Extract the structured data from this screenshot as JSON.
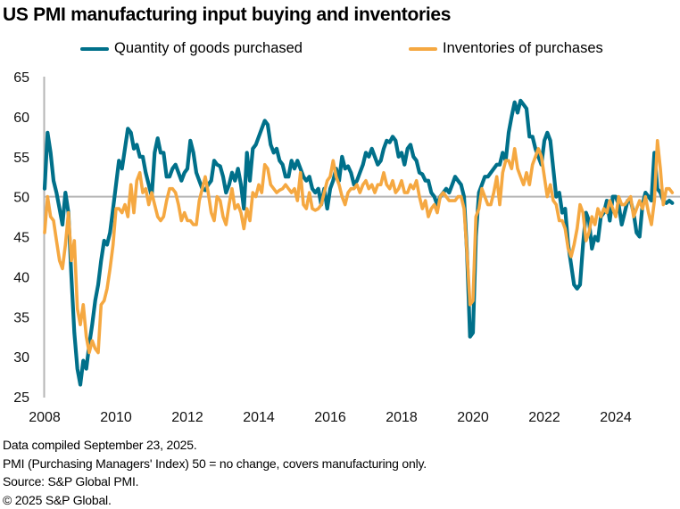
{
  "chart_data": {
    "type": "line",
    "title": "US PMI manufacturing input buying and inventories",
    "xlabel": "",
    "ylabel": "",
    "ylim": [
      25,
      65
    ],
    "xlim": [
      2008,
      2025.75
    ],
    "yticks": [
      25,
      30,
      35,
      40,
      45,
      50,
      55,
      60,
      65
    ],
    "xticks": [
      "2008",
      "2010",
      "2012",
      "2014",
      "2016",
      "2018",
      "2020",
      "2022",
      "2024"
    ],
    "reference_line": 50,
    "legend_position": "top-center",
    "x_start": "2008-01",
    "frequency": "monthly",
    "series": [
      {
        "name": "Quantity of goods purchased",
        "color": "#00708A",
        "values": [
          51.0,
          58.0,
          55.5,
          52.0,
          50.5,
          48.5,
          46.5,
          50.5,
          48.0,
          40.0,
          33.0,
          28.5,
          26.5,
          29.5,
          28.5,
          31.5,
          34.0,
          37.0,
          39.0,
          42.0,
          44.5,
          44.0,
          45.5,
          48.5,
          51.5,
          54.5,
          53.5,
          56.0,
          58.5,
          58.0,
          56.0,
          56.5,
          55.0,
          55.0,
          53.0,
          51.5,
          50.0,
          55.5,
          57.3,
          55.5,
          55.5,
          52.5,
          52.5,
          53.5,
          54.0,
          53.0,
          52.0,
          53.0,
          53.5,
          57.0,
          55.5,
          53.0,
          52.0,
          51.0,
          50.8,
          51.5,
          52.0,
          54.5,
          54.0,
          53.8,
          52.5,
          50.5,
          51.5,
          53.0,
          52.0,
          53.5,
          51.5,
          48.5,
          55.5,
          52.0,
          56.0,
          56.5,
          57.5,
          58.5,
          59.5,
          59.0,
          56.5,
          55.5,
          56.0,
          54.5,
          54.0,
          52.5,
          52.5,
          54.5,
          53.5,
          54.5,
          53.5,
          52.5,
          52.0,
          52.5,
          51.0,
          50.5,
          51.0,
          49.0,
          51.0,
          48.5,
          51.0,
          52.0,
          53.5,
          52.0,
          55.0,
          53.5,
          53.8,
          53.0,
          51.5,
          52.0,
          53.0,
          54.0,
          55.5,
          55.0,
          56.0,
          55.0,
          54.0,
          54.5,
          56.0,
          57.0,
          56.8,
          57.5,
          57.0,
          55.0,
          55.5,
          54.0,
          56.0,
          56.5,
          55.0,
          54.5,
          53.0,
          52.8,
          52.0,
          52.0,
          50.5,
          50.0,
          49.0,
          50.0,
          50.5,
          51.0,
          50.5,
          51.5,
          52.5,
          52.0,
          51.5,
          50.0,
          43.0,
          32.5,
          33.0,
          45.0,
          50.5,
          51.5,
          52.5,
          52.5,
          53.0,
          53.5,
          54.0,
          54.0,
          55.5,
          54.5,
          58.0,
          60.0,
          61.8,
          60.5,
          62.0,
          61.5,
          61.0,
          57.5,
          57.5,
          56.0,
          55.0,
          54.0,
          57.0,
          58.0,
          57.0,
          53.5,
          50.0,
          50.5,
          48.0,
          48.5,
          44.0,
          41.5,
          39.0,
          38.5,
          39.0,
          44.0,
          48.0,
          47.0,
          43.5,
          45.0,
          44.5,
          47.5,
          48.0,
          49.5,
          47.0,
          50.0,
          50.0,
          49.0,
          46.5,
          48.0,
          49.5,
          49.5,
          48.0,
          45.5,
          45.0,
          49.0,
          50.5,
          50.0,
          49.5,
          55.5,
          51.0,
          50.5,
          49.5,
          49.2,
          49.5,
          49.2
        ]
      },
      {
        "name": "Inventories of purchases",
        "color": "#F5A841",
        "values": [
          45.5,
          50.0,
          47.5,
          47.0,
          44.5,
          42.0,
          41.0,
          44.0,
          48.0,
          42.0,
          44.5,
          36.0,
          34.0,
          36.5,
          32.5,
          30.5,
          32.0,
          31.0,
          30.5,
          36.5,
          37.0,
          38.5,
          41.0,
          44.0,
          48.5,
          48.5,
          48.0,
          49.0,
          47.5,
          51.5,
          48.0,
          52.0,
          53.0,
          50.5,
          51.0,
          49.0,
          50.5,
          49.0,
          47.5,
          47.0,
          47.5,
          49.5,
          51.0,
          51.0,
          50.5,
          49.0,
          47.0,
          48.0,
          47.0,
          47.0,
          46.5,
          46.5,
          49.5,
          51.0,
          52.5,
          50.5,
          48.0,
          47.0,
          50.0,
          49.5,
          47.5,
          46.5,
          49.0,
          51.0,
          48.5,
          49.0,
          48.0,
          46.0,
          48.5,
          47.0,
          50.5,
          50.0,
          51.5,
          50.5,
          54.0,
          53.5,
          51.5,
          51.0,
          50.5,
          50.8,
          51.0,
          51.5,
          51.0,
          50.5,
          51.0,
          49.5,
          53.0,
          49.0,
          48.5,
          50.5,
          48.5,
          48.3,
          48.5,
          49.0,
          50.5,
          52.0,
          52.5,
          54.5,
          52.5,
          51.5,
          50.0,
          49.0,
          50.5,
          51.0,
          51.0,
          51.5,
          50.5,
          51.5,
          52.0,
          51.0,
          51.5,
          50.5,
          51.5,
          51.5,
          53.0,
          51.5,
          51.0,
          52.0,
          50.5,
          51.0,
          52.0,
          50.5,
          50.5,
          51.5,
          51.0,
          52.0,
          50.0,
          48.5,
          49.5,
          47.5,
          48.5,
          49.0,
          48.0,
          50.0,
          50.5,
          50.0,
          49.5,
          49.5,
          49.5,
          50.0,
          50.0,
          48.5,
          43.0,
          36.5,
          37.0,
          47.5,
          48.5,
          51.0,
          50.0,
          49.0,
          49.0,
          50.5,
          52.5,
          49.0,
          53.0,
          54.5,
          54.5,
          53.5,
          56.0,
          53.5,
          52.5,
          51.5,
          53.0,
          51.5,
          54.0,
          55.0,
          56.0,
          55.0,
          52.5,
          50.0,
          51.5,
          49.5,
          49.0,
          47.0,
          47.0,
          46.0,
          43.5,
          42.5,
          44.0,
          46.0,
          49.0,
          48.0,
          44.5,
          45.5,
          47.5,
          46.5,
          48.5,
          47.5,
          48.5,
          48.0,
          49.5,
          48.5,
          47.5,
          50.0,
          49.0,
          49.0,
          49.5,
          50.0,
          47.5,
          48.5,
          49.5,
          48.5,
          50.0,
          48.0,
          46.5,
          49.5,
          57.0,
          53.5,
          49.0,
          51.0,
          51.0,
          50.5
        ]
      }
    ]
  },
  "footer": {
    "line1": "Data compiled September 23, 2025.",
    "line2": "PMI (Purchasing Managers' Index) 50 =  no change, covers manufacturing only.",
    "line3": "Source: S&P Global PMI.",
    "line4": "© 2025 S&P Global."
  }
}
